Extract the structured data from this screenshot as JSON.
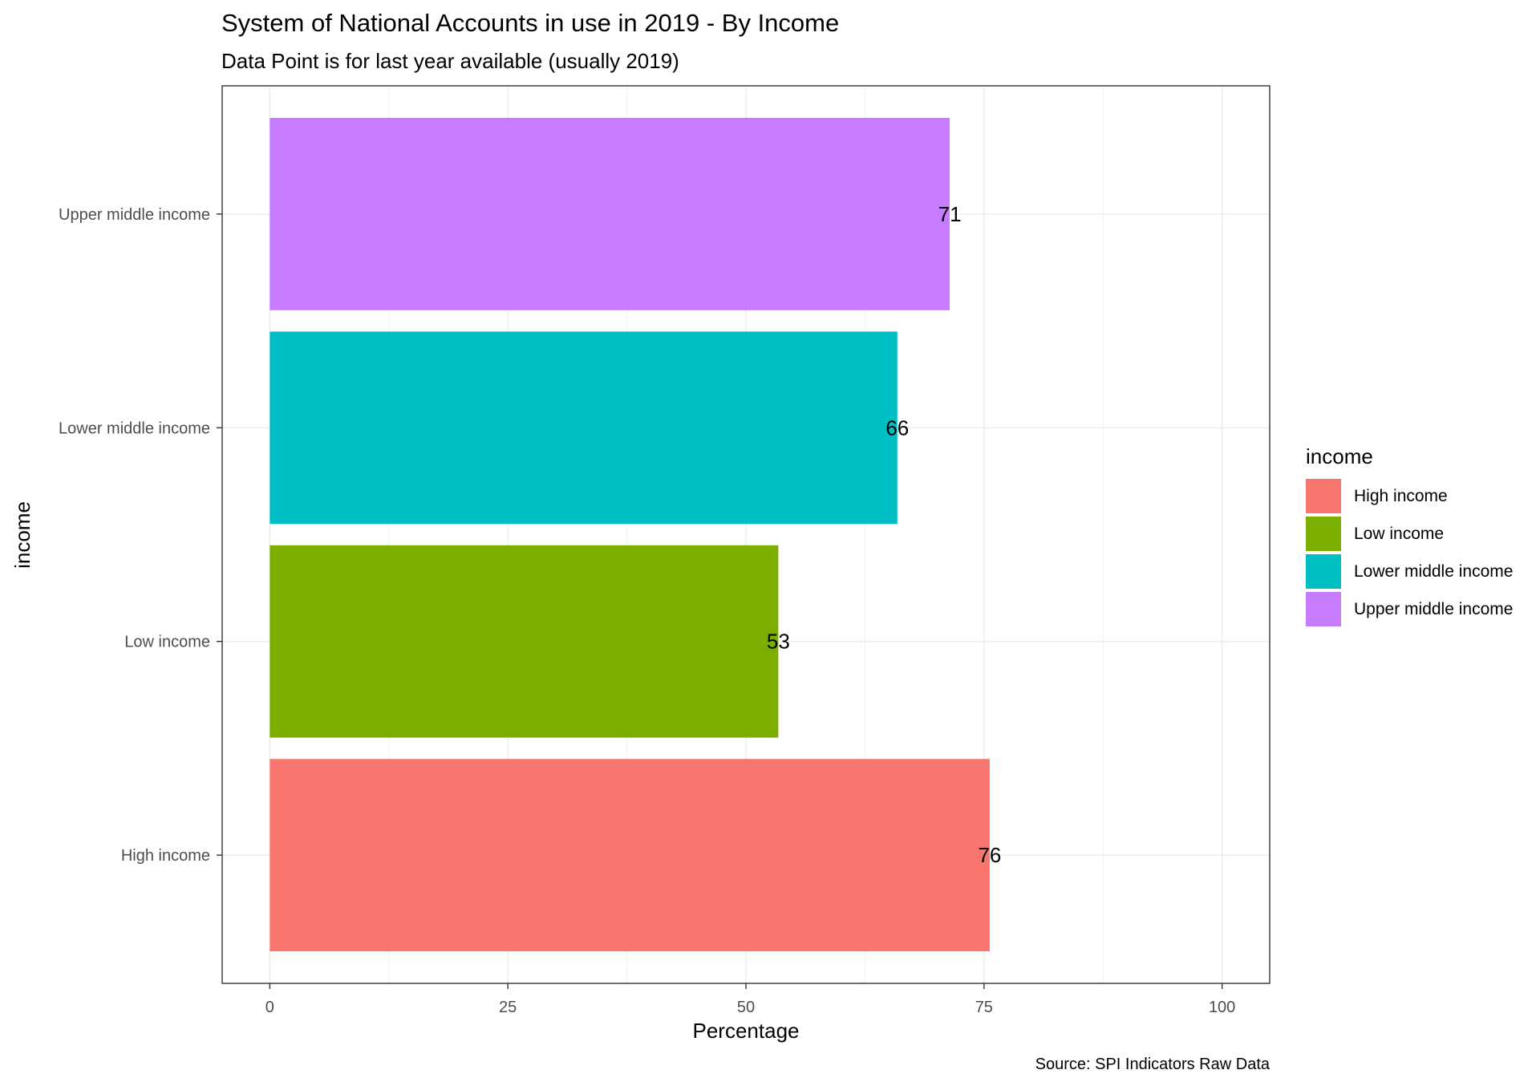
{
  "chart_data": {
    "type": "bar",
    "orientation": "horizontal",
    "title": "System of National Accounts in use in 2019 - By Income",
    "subtitle": "Data Point is for last year available (usually 2019)",
    "xlabel": "Percentage",
    "ylabel": "income",
    "caption": "Source: SPI Indicators Raw Data",
    "categories": [
      "High income",
      "Low income",
      "Lower middle income",
      "Upper middle income"
    ],
    "values": [
      75.6,
      53.4,
      65.9,
      71.4
    ],
    "value_labels": [
      "76",
      "53",
      "66",
      "71"
    ],
    "colors": [
      "#F8766D",
      "#7CAE00",
      "#00BFC4",
      "#C77CFF"
    ],
    "xlim": [
      -5,
      105
    ],
    "x_ticks": [
      0,
      25,
      50,
      75,
      100
    ],
    "x_tick_labels": [
      "0",
      "25",
      "50",
      "75",
      "100"
    ],
    "grid": true,
    "legend": {
      "title": "income",
      "position": "right",
      "items": [
        "High income",
        "Low income",
        "Lower middle income",
        "Upper middle income"
      ]
    }
  }
}
